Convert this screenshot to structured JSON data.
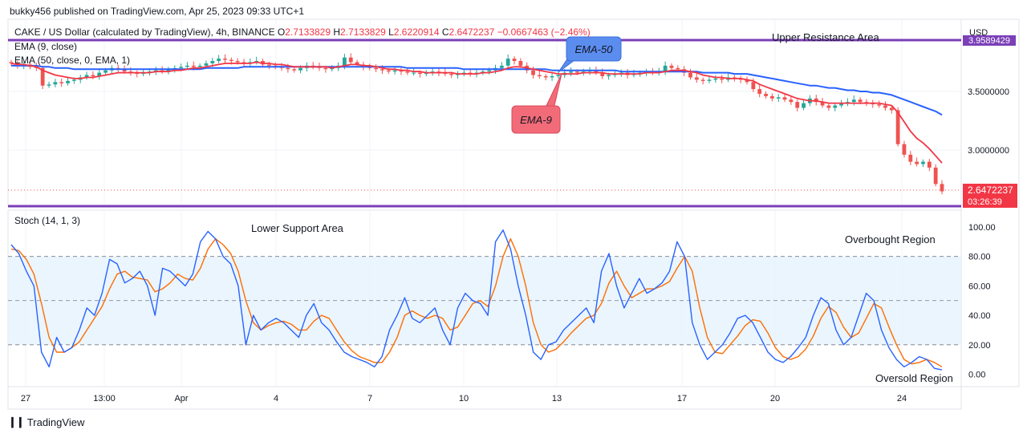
{
  "header": {
    "credit": "bukky456 published on TradingView.com, Apr 25, 2023 09:33 UTC+1"
  },
  "legend": {
    "symbol": "CAKE / US Dollar (calculated by TradingView), 4h, BINANCE",
    "o_label": "O",
    "o": "2.7133829",
    "h_label": "H",
    "h": "2.7133829",
    "l_label": "L",
    "l": "2.6220914",
    "c_label": "C",
    "c": "2.6472237",
    "change": "−0.0667463 (−2.46%)",
    "ema9": "EMA (9, close)",
    "ema50": "EMA (50, close, 0, EMA, 1)",
    "stoch": "Stoch (14, 1, 3)"
  },
  "price_axis": {
    "currency": "USD",
    "resistance_tag": "3.9589429",
    "ticks": [
      "3.5000000",
      "3.0000000"
    ],
    "last_price": "2.6472237",
    "countdown": "03:26:39"
  },
  "stoch_axis": {
    "ticks": [
      "100.00",
      "80.00",
      "60.00",
      "40.00",
      "20.00",
      "0.00"
    ]
  },
  "time_axis": {
    "labels": [
      "27",
      "13:00",
      "Apr",
      "4",
      "7",
      "10",
      "13",
      "17",
      "20",
      "24"
    ]
  },
  "annotations": {
    "upper_resistance": "Upper Resistance Area",
    "lower_support": "Lower Support Area",
    "overbought": "Overbought Region",
    "oversold": "Oversold Region",
    "ema50_callout": "EMA-50",
    "ema9_callout": "EMA-9"
  },
  "footer": {
    "brand": "TradingView"
  },
  "colors": {
    "up": "#26a69a",
    "down": "#ef5350",
    "ema9": "#f23645",
    "ema50": "#2962ff",
    "stoch_k": "#2962ff",
    "stoch_d": "#ff6d00",
    "level_line": "#7b3fb8",
    "callout_blue": "#5b8def",
    "callout_red": "#f26b78",
    "band_fill": "#e3f2fd"
  },
  "chart_data": [
    {
      "type": "candlestick",
      "title": "CAKE / US Dollar (calculated by TradingView), 4h, BINANCE",
      "x_labels": [
        "27",
        "13:00",
        "Apr",
        "4",
        "7",
        "10",
        "13",
        "17",
        "20",
        "24"
      ],
      "ylim": [
        2.55,
        4.0
      ],
      "horizontal_levels": [
        {
          "label": "Upper Resistance Area",
          "value": 3.9589429
        },
        {
          "label": "Lower Support Area",
          "value": 2.57
        }
      ],
      "last_price": 2.6472237,
      "closes": [
        3.74,
        3.72,
        3.73,
        3.71,
        3.7,
        3.55,
        3.56,
        3.58,
        3.57,
        3.59,
        3.6,
        3.62,
        3.64,
        3.63,
        3.66,
        3.68,
        3.7,
        3.69,
        3.67,
        3.66,
        3.65,
        3.66,
        3.67,
        3.68,
        3.67,
        3.69,
        3.7,
        3.71,
        3.72,
        3.71,
        3.72,
        3.74,
        3.76,
        3.78,
        3.77,
        3.76,
        3.75,
        3.74,
        3.75,
        3.76,
        3.73,
        3.72,
        3.71,
        3.7,
        3.69,
        3.68,
        3.7,
        3.72,
        3.71,
        3.7,
        3.69,
        3.7,
        3.72,
        3.79,
        3.75,
        3.73,
        3.71,
        3.7,
        3.69,
        3.68,
        3.67,
        3.68,
        3.67,
        3.66,
        3.66,
        3.65,
        3.66,
        3.67,
        3.66,
        3.65,
        3.64,
        3.65,
        3.66,
        3.65,
        3.66,
        3.67,
        3.68,
        3.7,
        3.72,
        3.78,
        3.76,
        3.72,
        3.68,
        3.64,
        3.63,
        3.62,
        3.63,
        3.64,
        3.66,
        3.67,
        3.66,
        3.67,
        3.68,
        3.66,
        3.63,
        3.64,
        3.65,
        3.66,
        3.64,
        3.65,
        3.66,
        3.67,
        3.66,
        3.67,
        3.72,
        3.7,
        3.69,
        3.66,
        3.62,
        3.6,
        3.59,
        3.6,
        3.61,
        3.6,
        3.62,
        3.61,
        3.6,
        3.58,
        3.52,
        3.48,
        3.46,
        3.44,
        3.45,
        3.43,
        3.41,
        3.36,
        3.4,
        3.44,
        3.41,
        3.38,
        3.36,
        3.38,
        3.4,
        3.41,
        3.43,
        3.41,
        3.4,
        3.39,
        3.38,
        3.36,
        3.34,
        3.05,
        2.96,
        2.9,
        2.88,
        2.9,
        2.85,
        2.71,
        2.6472237
      ],
      "series": [
        {
          "name": "EMA (9, close)",
          "values": [
            3.74,
            3.73,
            3.73,
            3.72,
            3.71,
            3.68,
            3.66,
            3.64,
            3.63,
            3.62,
            3.61,
            3.61,
            3.62,
            3.62,
            3.63,
            3.64,
            3.65,
            3.66,
            3.66,
            3.66,
            3.66,
            3.66,
            3.66,
            3.67,
            3.67,
            3.67,
            3.68,
            3.68,
            3.69,
            3.7,
            3.7,
            3.71,
            3.72,
            3.73,
            3.74,
            3.74,
            3.74,
            3.74,
            3.74,
            3.75,
            3.74,
            3.74,
            3.73,
            3.73,
            3.72,
            3.71,
            3.71,
            3.71,
            3.71,
            3.71,
            3.71,
            3.7,
            3.71,
            3.72,
            3.73,
            3.73,
            3.72,
            3.72,
            3.71,
            3.7,
            3.69,
            3.69,
            3.68,
            3.68,
            3.67,
            3.67,
            3.66,
            3.66,
            3.66,
            3.66,
            3.66,
            3.65,
            3.65,
            3.65,
            3.65,
            3.66,
            3.66,
            3.67,
            3.68,
            3.7,
            3.71,
            3.71,
            3.7,
            3.69,
            3.68,
            3.67,
            3.66,
            3.65,
            3.65,
            3.65,
            3.65,
            3.66,
            3.66,
            3.66,
            3.66,
            3.65,
            3.65,
            3.65,
            3.65,
            3.65,
            3.65,
            3.66,
            3.66,
            3.66,
            3.67,
            3.68,
            3.68,
            3.68,
            3.67,
            3.66,
            3.64,
            3.63,
            3.62,
            3.62,
            3.61,
            3.61,
            3.61,
            3.6,
            3.59,
            3.56,
            3.54,
            3.52,
            3.5,
            3.48,
            3.46,
            3.44,
            3.43,
            3.42,
            3.42,
            3.41,
            3.4,
            3.4,
            3.4,
            3.4,
            3.4,
            3.4,
            3.4,
            3.4,
            3.4,
            3.39,
            3.38,
            3.32,
            3.24,
            3.16,
            3.1,
            3.06,
            3.01,
            2.95,
            2.89
          ]
        },
        {
          "name": "EMA (50, close, 0, EMA, 1)",
          "values": [
            3.72,
            3.72,
            3.72,
            3.72,
            3.72,
            3.71,
            3.71,
            3.7,
            3.7,
            3.7,
            3.69,
            3.69,
            3.69,
            3.69,
            3.69,
            3.69,
            3.69,
            3.69,
            3.69,
            3.69,
            3.69,
            3.69,
            3.69,
            3.69,
            3.69,
            3.69,
            3.69,
            3.69,
            3.69,
            3.69,
            3.69,
            3.7,
            3.7,
            3.7,
            3.7,
            3.7,
            3.7,
            3.71,
            3.71,
            3.71,
            3.71,
            3.71,
            3.71,
            3.71,
            3.71,
            3.71,
            3.71,
            3.71,
            3.71,
            3.71,
            3.71,
            3.71,
            3.71,
            3.71,
            3.71,
            3.71,
            3.71,
            3.71,
            3.71,
            3.71,
            3.71,
            3.71,
            3.71,
            3.7,
            3.7,
            3.7,
            3.7,
            3.7,
            3.7,
            3.7,
            3.7,
            3.7,
            3.69,
            3.69,
            3.69,
            3.69,
            3.69,
            3.69,
            3.69,
            3.69,
            3.69,
            3.69,
            3.69,
            3.69,
            3.69,
            3.69,
            3.68,
            3.68,
            3.68,
            3.68,
            3.68,
            3.68,
            3.68,
            3.68,
            3.68,
            3.68,
            3.68,
            3.67,
            3.67,
            3.67,
            3.67,
            3.67,
            3.67,
            3.67,
            3.67,
            3.67,
            3.67,
            3.67,
            3.67,
            3.67,
            3.66,
            3.66,
            3.66,
            3.66,
            3.66,
            3.65,
            3.65,
            3.65,
            3.64,
            3.63,
            3.62,
            3.61,
            3.6,
            3.59,
            3.58,
            3.57,
            3.56,
            3.55,
            3.55,
            3.54,
            3.53,
            3.53,
            3.52,
            3.51,
            3.51,
            3.5,
            3.5,
            3.49,
            3.49,
            3.48,
            3.47,
            3.45,
            3.43,
            3.41,
            3.39,
            3.37,
            3.35,
            3.33,
            3.3
          ]
        }
      ]
    },
    {
      "type": "line",
      "title": "Stoch (14, 1, 3)",
      "ylim": [
        0,
        100
      ],
      "bands": [
        {
          "from": 20,
          "to": 80
        }
      ],
      "reference_lines": [
        20,
        50,
        80
      ],
      "series": [
        {
          "name": "%K",
          "values": [
            88,
            82,
            70,
            60,
            15,
            5,
            25,
            15,
            18,
            30,
            45,
            40,
            55,
            78,
            75,
            62,
            65,
            70,
            60,
            40,
            72,
            70,
            65,
            60,
            68,
            90,
            97,
            92,
            80,
            75,
            60,
            20,
            40,
            30,
            35,
            38,
            35,
            30,
            25,
            40,
            48,
            35,
            30,
            22,
            15,
            12,
            10,
            8,
            5,
            12,
            30,
            40,
            52,
            38,
            35,
            40,
            45,
            30,
            20,
            45,
            55,
            50,
            48,
            40,
            90,
            98,
            85,
            60,
            40,
            15,
            10,
            20,
            22,
            30,
            35,
            40,
            45,
            35,
            70,
            82,
            60,
            45,
            55,
            65,
            55,
            58,
            62,
            70,
            90,
            80,
            35,
            20,
            10,
            15,
            20,
            28,
            38,
            40,
            35,
            25,
            15,
            10,
            8,
            12,
            18,
            25,
            40,
            52,
            48,
            30,
            20,
            25,
            40,
            55,
            50,
            30,
            18,
            10,
            5,
            8,
            12,
            10,
            4,
            3
          ]
        },
        {
          "name": "%D",
          "values": [
            85,
            84,
            78,
            68,
            48,
            25,
            15,
            15,
            18,
            22,
            30,
            38,
            46,
            58,
            68,
            70,
            66,
            65,
            64,
            56,
            58,
            62,
            68,
            65,
            64,
            72,
            85,
            92,
            88,
            82,
            70,
            50,
            35,
            30,
            33,
            35,
            36,
            34,
            30,
            30,
            36,
            40,
            38,
            30,
            22,
            16,
            12,
            10,
            8,
            8,
            15,
            25,
            40,
            43,
            40,
            38,
            40,
            38,
            30,
            32,
            40,
            48,
            50,
            46,
            60,
            80,
            92,
            80,
            60,
            35,
            20,
            15,
            17,
            22,
            28,
            33,
            38,
            40,
            48,
            62,
            70,
            60,
            52,
            55,
            58,
            58,
            60,
            63,
            72,
            80,
            70,
            45,
            25,
            15,
            14,
            20,
            26,
            33,
            37,
            36,
            28,
            18,
            12,
            10,
            12,
            17,
            26,
            38,
            46,
            42,
            32,
            25,
            28,
            38,
            48,
            45,
            32,
            20,
            10,
            7,
            8,
            10,
            8,
            5
          ]
        }
      ]
    }
  ]
}
